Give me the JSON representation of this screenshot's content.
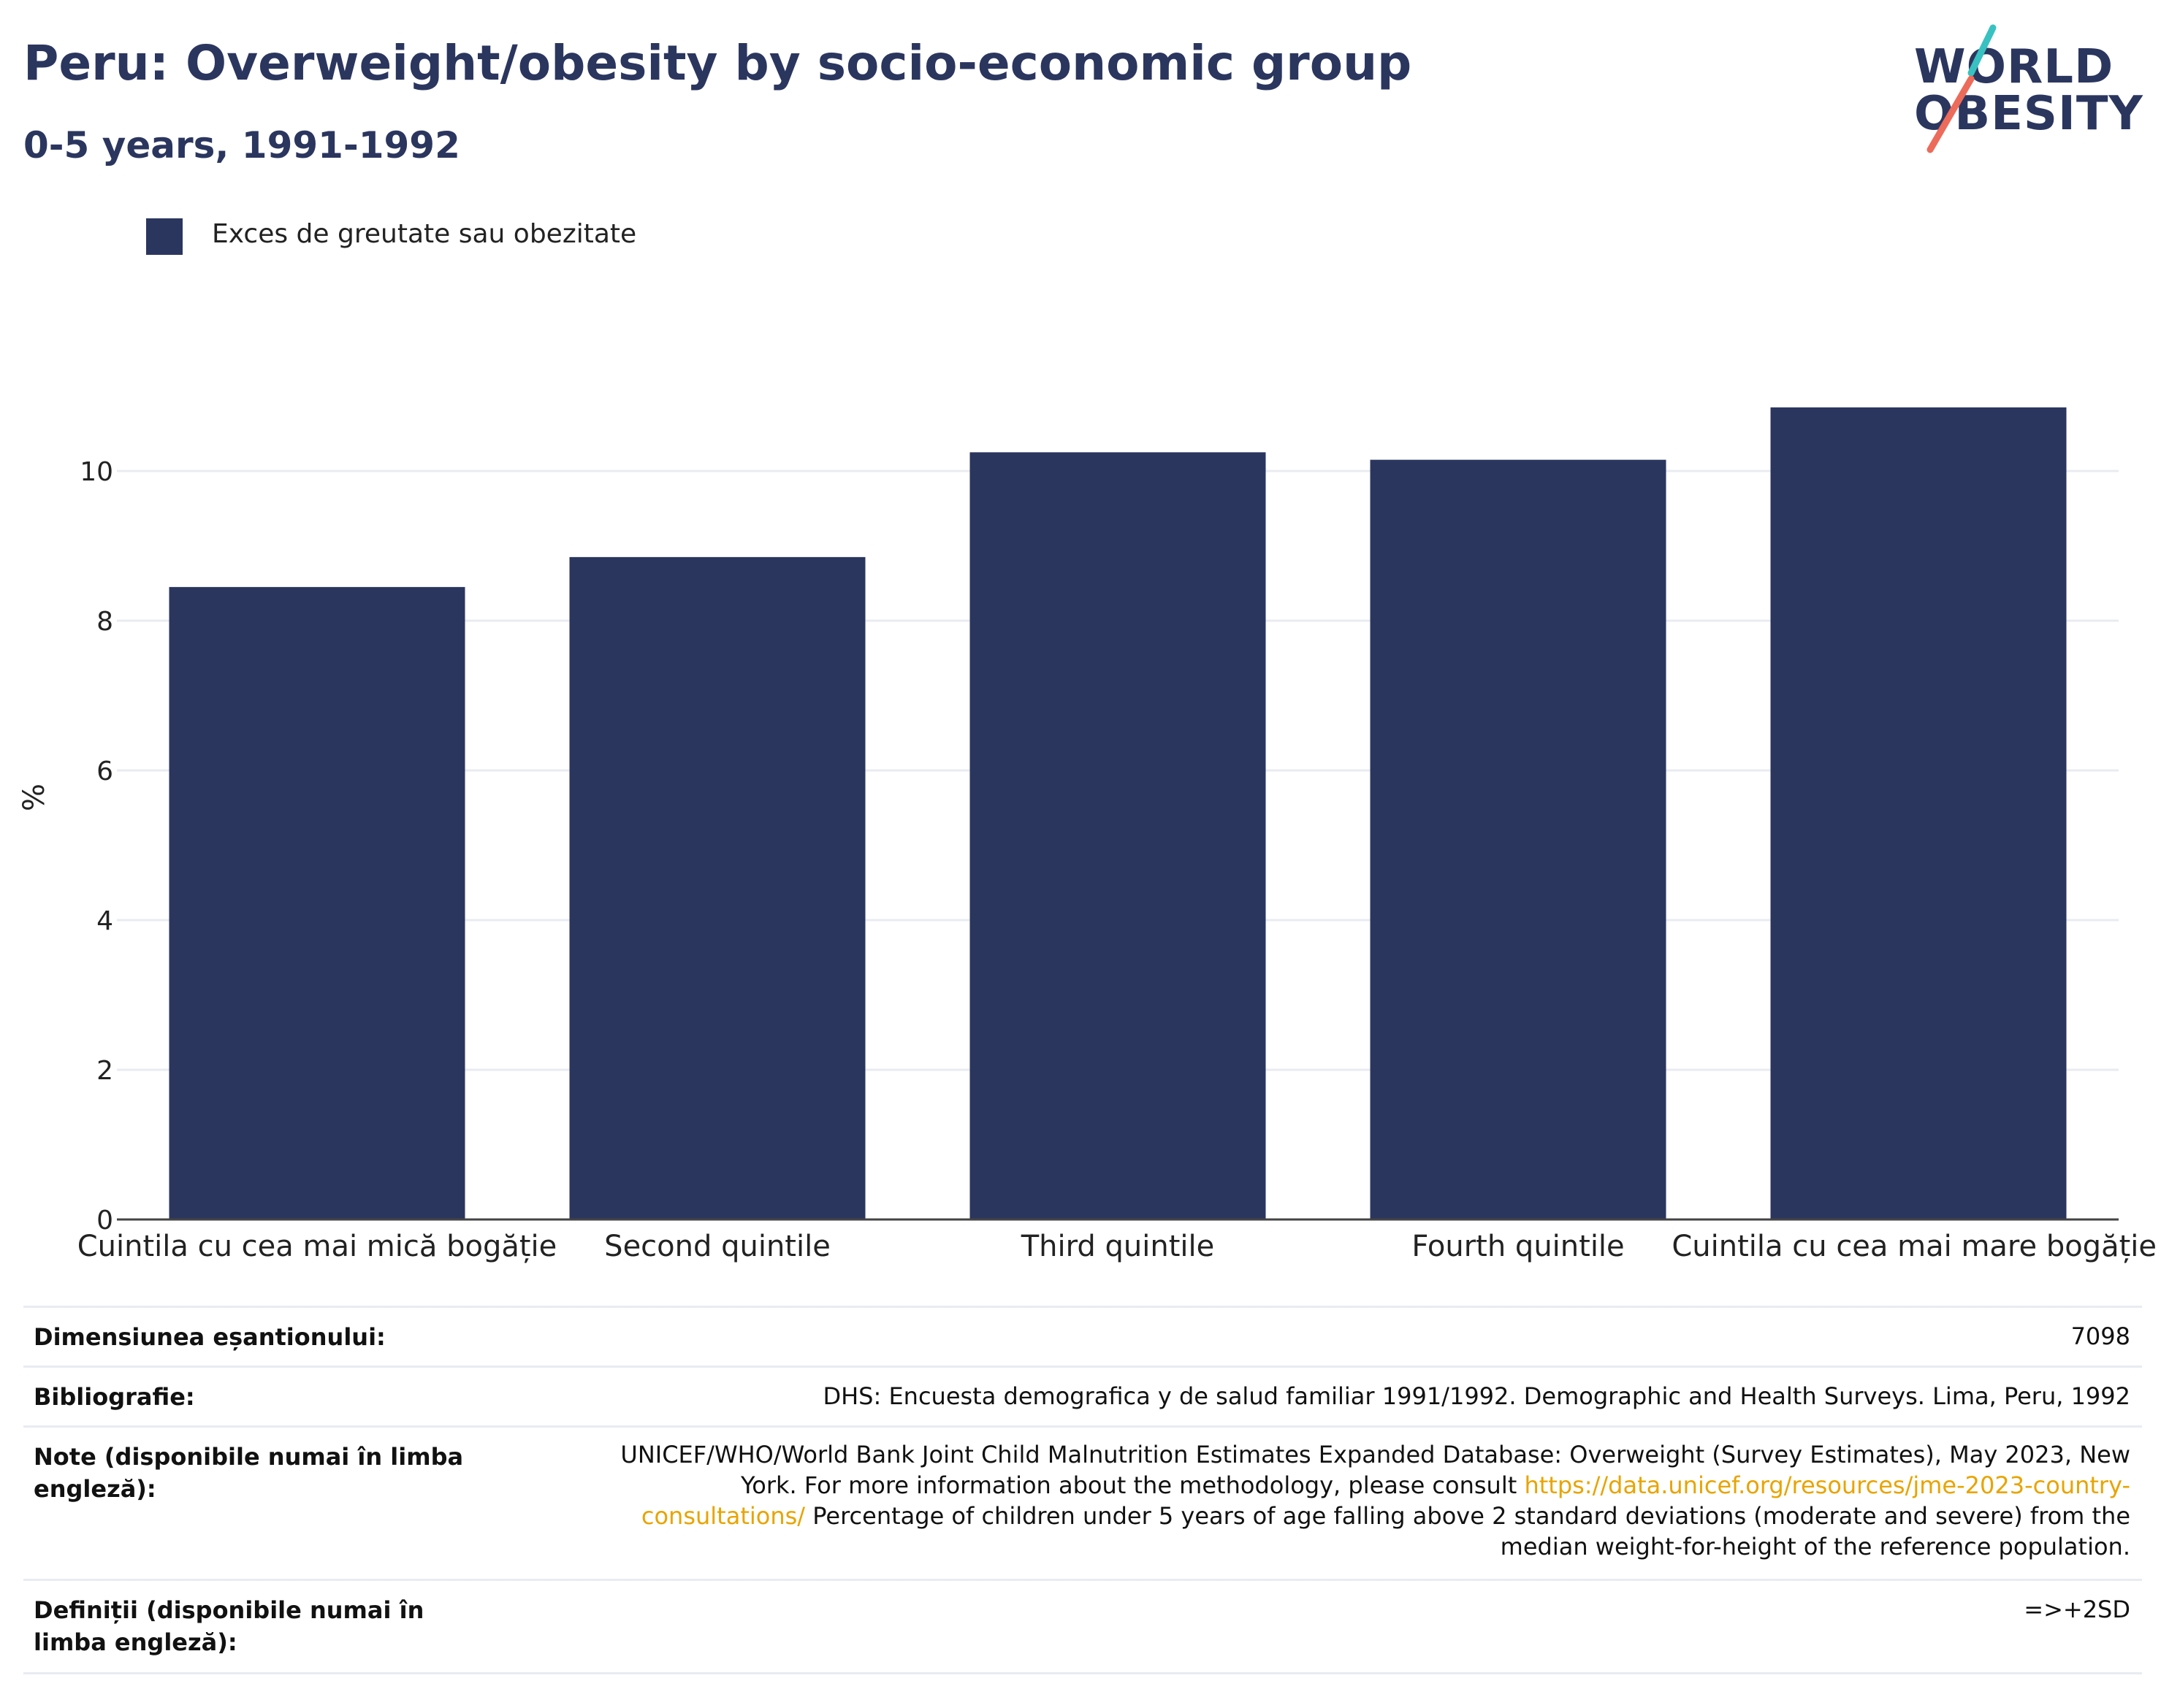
{
  "header": {
    "title": "Peru: Overweight/obesity by socio-economic group",
    "subtitle": "0-5 years, 1991-1992"
  },
  "logo": {
    "line1": "WORLD",
    "line2": "OBESITY",
    "accent_colors": [
      "#38c1c1",
      "#ec6b5a"
    ]
  },
  "chart_data": {
    "type": "bar",
    "categories": [
      "Cuintila cu cea mai mică bogăție",
      "Second quintile",
      "Third quintile",
      "Fourth quintile",
      "Cuintila cu cea mai mare bogăție"
    ],
    "series": [
      {
        "name": "Exces de greutate sau obezitate",
        "values": [
          8.45,
          8.85,
          10.25,
          10.15,
          10.85
        ],
        "color": "#2b365f"
      }
    ],
    "ylabel": "%",
    "yticks": [
      0,
      2,
      4,
      6,
      8,
      10
    ],
    "ylim": [
      0,
      11.5
    ],
    "grid": true,
    "legend": "top-left"
  },
  "meta": {
    "sample_size": {
      "label": "Dimensiunea eșantionului:",
      "value": "7098"
    },
    "bibliography": {
      "label": "Bibliografie:",
      "value": "DHS: Encuesta demografica y de salud familiar 1991/1992. Demographic and Health Surveys. Lima, Peru, 1992"
    },
    "notes": {
      "label": "Note (disponibile numai în limba engleză):",
      "text1": "UNICEF/WHO/World Bank Joint Child Malnutrition Estimates Expanded Database: Overweight (Survey Estimates), May 2023, New York. For more information about the methodology, please consult ",
      "link": "https://data.unicef.org/resources/jme-2023-country-consultations/",
      "text2": "Percentage of children under 5 years of age falling above 2 standard deviations (moderate and severe) from the median weight-for-height of the reference population."
    },
    "definitions": {
      "label": "Definiții (disponibile numai în limba engleză):",
      "value": "=>+2SD"
    }
  }
}
